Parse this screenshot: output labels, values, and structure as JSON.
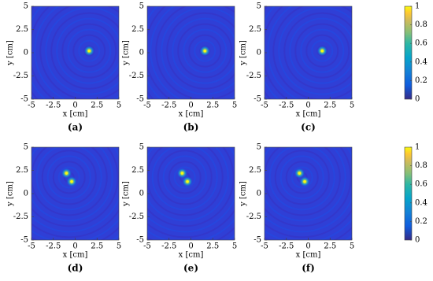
{
  "chart_data": [
    {
      "type": "heatmap",
      "label": "(a)",
      "xlabel": "x [cm]",
      "ylabel": "y [cm]",
      "xlim": [
        -5,
        5
      ],
      "ylim": [
        -5,
        5
      ],
      "xticks": [
        -5,
        -2.5,
        0,
        2.5,
        5
      ],
      "yticks": [
        -5,
        -2.5,
        0,
        2.5,
        5
      ],
      "x": [
        1.6
      ],
      "y": [
        0.2
      ]
    },
    {
      "type": "heatmap",
      "label": "(b)",
      "xlabel": "x [cm]",
      "ylabel": "y [cm]",
      "xlim": [
        -5,
        5
      ],
      "ylim": [
        -5,
        5
      ],
      "xticks": [
        -5,
        -2.5,
        0,
        2.5,
        5
      ],
      "yticks": [
        -5,
        -2.5,
        0,
        2.5,
        5
      ],
      "x": [
        1.6
      ],
      "y": [
        0.2
      ]
    },
    {
      "type": "heatmap",
      "label": "(c)",
      "xlabel": "x [cm]",
      "ylabel": "y [cm]",
      "xlim": [
        -5,
        5
      ],
      "ylim": [
        -5,
        5
      ],
      "xticks": [
        -5,
        -2.5,
        0,
        2.5,
        5
      ],
      "yticks": [
        -5,
        -2.5,
        0,
        2.5,
        5
      ],
      "x": [
        1.6
      ],
      "y": [
        0.2
      ],
      "colorbar": {
        "clim": [
          0,
          1
        ],
        "ticks": [
          0,
          0.2,
          0.4,
          0.6,
          0.8,
          1
        ]
      }
    },
    {
      "type": "heatmap",
      "label": "(d)",
      "xlabel": "x [cm]",
      "ylabel": "y [cm]",
      "xlim": [
        -5,
        5
      ],
      "ylim": [
        -5,
        5
      ],
      "xticks": [
        -5,
        -2.5,
        0,
        2.5,
        5
      ],
      "yticks": [
        -5,
        -2.5,
        0,
        2.5,
        5
      ],
      "x": [
        -1,
        -0.4
      ],
      "y": [
        2.2,
        1.3
      ]
    },
    {
      "type": "heatmap",
      "label": "(e)",
      "xlabel": "x [cm]",
      "ylabel": "y [cm]",
      "xlim": [
        -5,
        5
      ],
      "ylim": [
        -5,
        5
      ],
      "xticks": [
        -5,
        -2.5,
        0,
        2.5,
        5
      ],
      "yticks": [
        -5,
        -2.5,
        0,
        2.5,
        5
      ],
      "x": [
        -1,
        -0.4
      ],
      "y": [
        2.2,
        1.3
      ]
    },
    {
      "type": "heatmap",
      "label": "(f)",
      "xlabel": "x [cm]",
      "ylabel": "y [cm]",
      "xlim": [
        -5,
        5
      ],
      "ylim": [
        -5,
        5
      ],
      "xticks": [
        -5,
        -2.5,
        0,
        2.5,
        5
      ],
      "yticks": [
        -5,
        -2.5,
        0,
        2.5,
        5
      ],
      "x": [
        -1,
        -0.4
      ],
      "y": [
        2.2,
        1.3
      ],
      "colorbar": {
        "clim": [
          0,
          1
        ],
        "ticks": [
          0,
          0.2,
          0.4,
          0.6,
          0.8,
          1
        ]
      }
    }
  ]
}
